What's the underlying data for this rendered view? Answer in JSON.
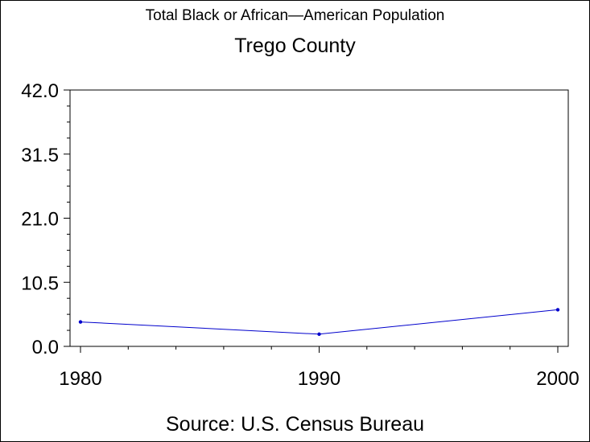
{
  "chart_data": {
    "type": "line",
    "title": "Total Black or African—American Population",
    "subtitle": "Trego County",
    "source": "Source: U.S. Census Bureau",
    "x": [
      1980,
      1990,
      2000
    ],
    "x_tick_labels": [
      "1980",
      "1990",
      "2000"
    ],
    "y_tick_labels": [
      "0.0",
      "10.5",
      "21.0",
      "31.5",
      "42.0"
    ],
    "y_ticks": [
      0,
      10.5,
      21,
      31.5,
      42
    ],
    "series": [
      {
        "values": [
          4,
          2,
          6
        ],
        "color": "#0000cc"
      }
    ],
    "xlim": [
      1980,
      2000
    ],
    "ylim": [
      0,
      42
    ],
    "grid": false
  }
}
